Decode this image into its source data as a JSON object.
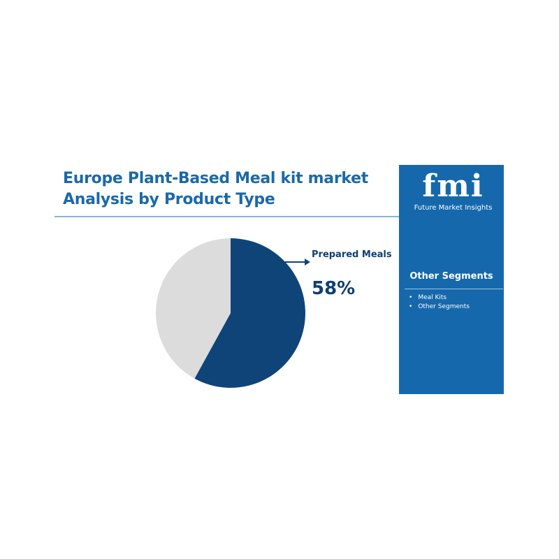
{
  "title_line1": "Europe Plant-Based Meal kit market",
  "title_line2": "Analysis by Product Type",
  "brand": {
    "logo": "fmi",
    "name": "Future Market Insights"
  },
  "side_panel": {
    "title": "Other Segments",
    "items": [
      "Meal Kits",
      "Other Segments"
    ]
  },
  "chart_data": {
    "type": "pie",
    "slices": [
      {
        "name": "Prepared Meals",
        "value": 58,
        "label": "58%",
        "color": "#0f4479"
      },
      {
        "name": "Other",
        "value": 42,
        "color": "#dcdcdc"
      }
    ],
    "annotation": {
      "label": "Prepared Meals",
      "value": "58%"
    }
  }
}
